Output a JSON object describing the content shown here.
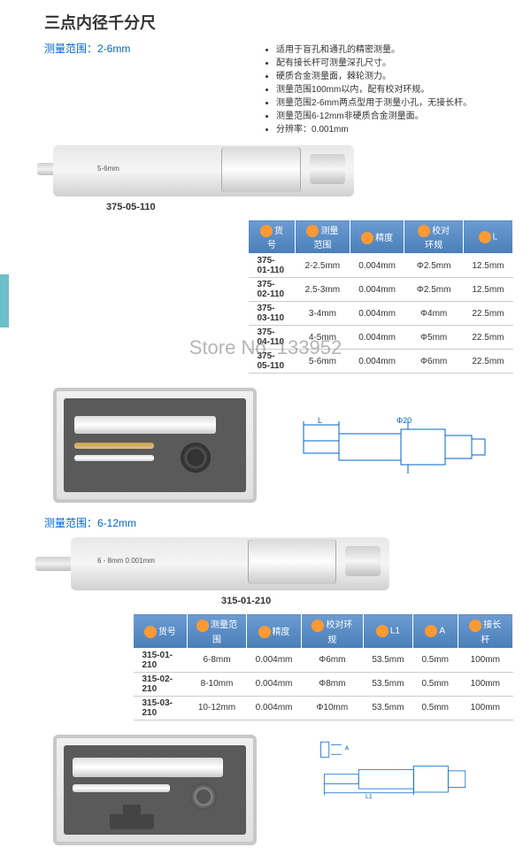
{
  "title": "三点内径千分尺",
  "range1_label": "测量范围：2-6mm",
  "range2_label": "测量范围：6-12mm",
  "bullets": [
    "适用于盲孔和通孔的精密测量。",
    "配有接长杆可测量深孔尺寸。",
    "硬质合金测量面，棘轮测力。",
    "测量范围100mm以内，配有校对环规。",
    "测量范围2-6mm两点型用于测量小孔，无接长杆。",
    "测量范围6-12mm非硬质合金测量面。",
    "分辨率：0.001mm"
  ],
  "mic1_text": "5-6mm",
  "mic2_text": "6 - 8mm   0.001mm",
  "partno1": "375-05-110",
  "partno2": "315-01-210",
  "table1": {
    "headers": [
      "货号",
      "测量范围",
      "精度",
      "校对环规",
      "L"
    ],
    "rows": [
      [
        "375-01-110",
        "2-2.5mm",
        "0.004mm",
        "Φ2.5mm",
        "12.5mm"
      ],
      [
        "375-02-110",
        "2.5-3mm",
        "0.004mm",
        "Φ2.5mm",
        "12.5mm"
      ],
      [
        "375-03-110",
        "3-4mm",
        "0.004mm",
        "Φ4mm",
        "22.5mm"
      ],
      [
        "375-04-110",
        "4-5mm",
        "0.004mm",
        "Φ5mm",
        "22.5mm"
      ],
      [
        "375-05-110",
        "5-6mm",
        "0.004mm",
        "Φ6mm",
        "22.5mm"
      ]
    ]
  },
  "table2": {
    "headers": [
      "货号",
      "测量范围",
      "精度",
      "校对环规",
      "L1",
      "A",
      "接长杆"
    ],
    "rows": [
      [
        "315-01-210",
        "6-8mm",
        "0.004mm",
        "Φ6mm",
        "53.5mm",
        "0.5mm",
        "100mm"
      ],
      [
        "315-02-210",
        "8-10mm",
        "0.004mm",
        "Φ8mm",
        "53.5mm",
        "0.5mm",
        "100mm"
      ],
      [
        "315-03-210",
        "10-12mm",
        "0.004mm",
        "Φ10mm",
        "53.5mm",
        "0.5mm",
        "100mm"
      ]
    ]
  },
  "draw1": {
    "L": "L",
    "d20": "Φ20"
  },
  "draw2": {
    "L1": "L1",
    "A": "A"
  },
  "watermark": "Store No. 133952",
  "colors": {
    "header_bg": "#5a8bc4",
    "accent": "#0066cc",
    "icon": "#ff9933"
  }
}
